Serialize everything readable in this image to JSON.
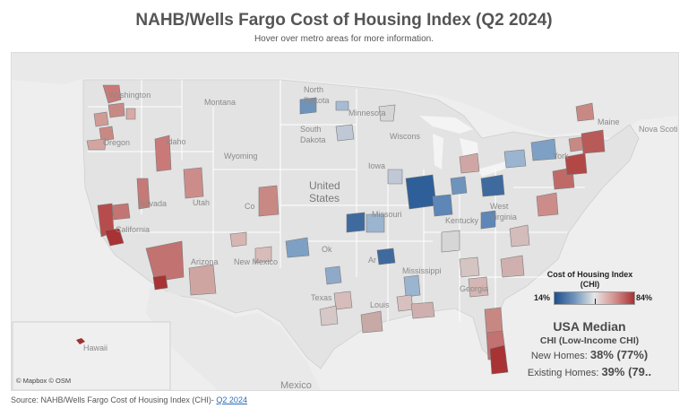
{
  "title": "NAHB/Wells Fargo Cost of Housing Index (Q2 2024)",
  "subtitle": "Hover over metro areas for more information.",
  "map": {
    "labels": {
      "washington": "Washington",
      "montana": "Montana",
      "north_dakota_1": "North",
      "north_dakota_2": "Dakota",
      "minnesota": "Minnesota",
      "maine": "Maine",
      "nova_scotia": "Nova Scoti",
      "oregon": "Oregon",
      "idaho": "Idaho",
      "wyoming": "Wyoming",
      "south_dakota_1": "South",
      "south_dakota_2": "Dakota",
      "wisconsin": "Wiscons",
      "iowa": "Iowa",
      "nevada": "Nevada",
      "utah": "Utah",
      "colorado": "Co",
      "united_states_1": "United",
      "united_states_2": "States",
      "california": "California",
      "missouri": "Missouri",
      "kentucky": "Kentucky",
      "west_virginia_1": "West",
      "west_virginia_2": "Virginia",
      "arizona": "Arizona",
      "new_mexico": "New Mexico",
      "oklahoma": "Ok",
      "arkansas": "Ar",
      "mississippi": "Mississippi",
      "georgia": "Georgia",
      "texas": "Texas",
      "louisiana": "Louis",
      "hawaii": "Hawaii",
      "mexico": "Mexico",
      "york": "York"
    },
    "attribution": "© Mapbox © OSM"
  },
  "legend": {
    "title": "Cost of Housing Index (CHI)",
    "min_label": "14%",
    "max_label": "84%",
    "min_value": 14,
    "max_value": 84,
    "median_marker": 38,
    "colors": {
      "low": "#1f4e8c",
      "mid": "#e6e6e6",
      "high": "#a83234"
    }
  },
  "median": {
    "title": "USA Median",
    "subtitle": "CHI (Low-Income CHI)",
    "new_homes_label": "New Homes: ",
    "new_homes_value": "38% (77%)",
    "existing_homes_label": "Existing Homes: ",
    "existing_homes_value": "39% (79.."
  },
  "footer": {
    "source_text": "Source: NAHB/Wells Fargo Cost of Housing Index (CHI)- ",
    "link_text": "Q2 2024"
  }
}
